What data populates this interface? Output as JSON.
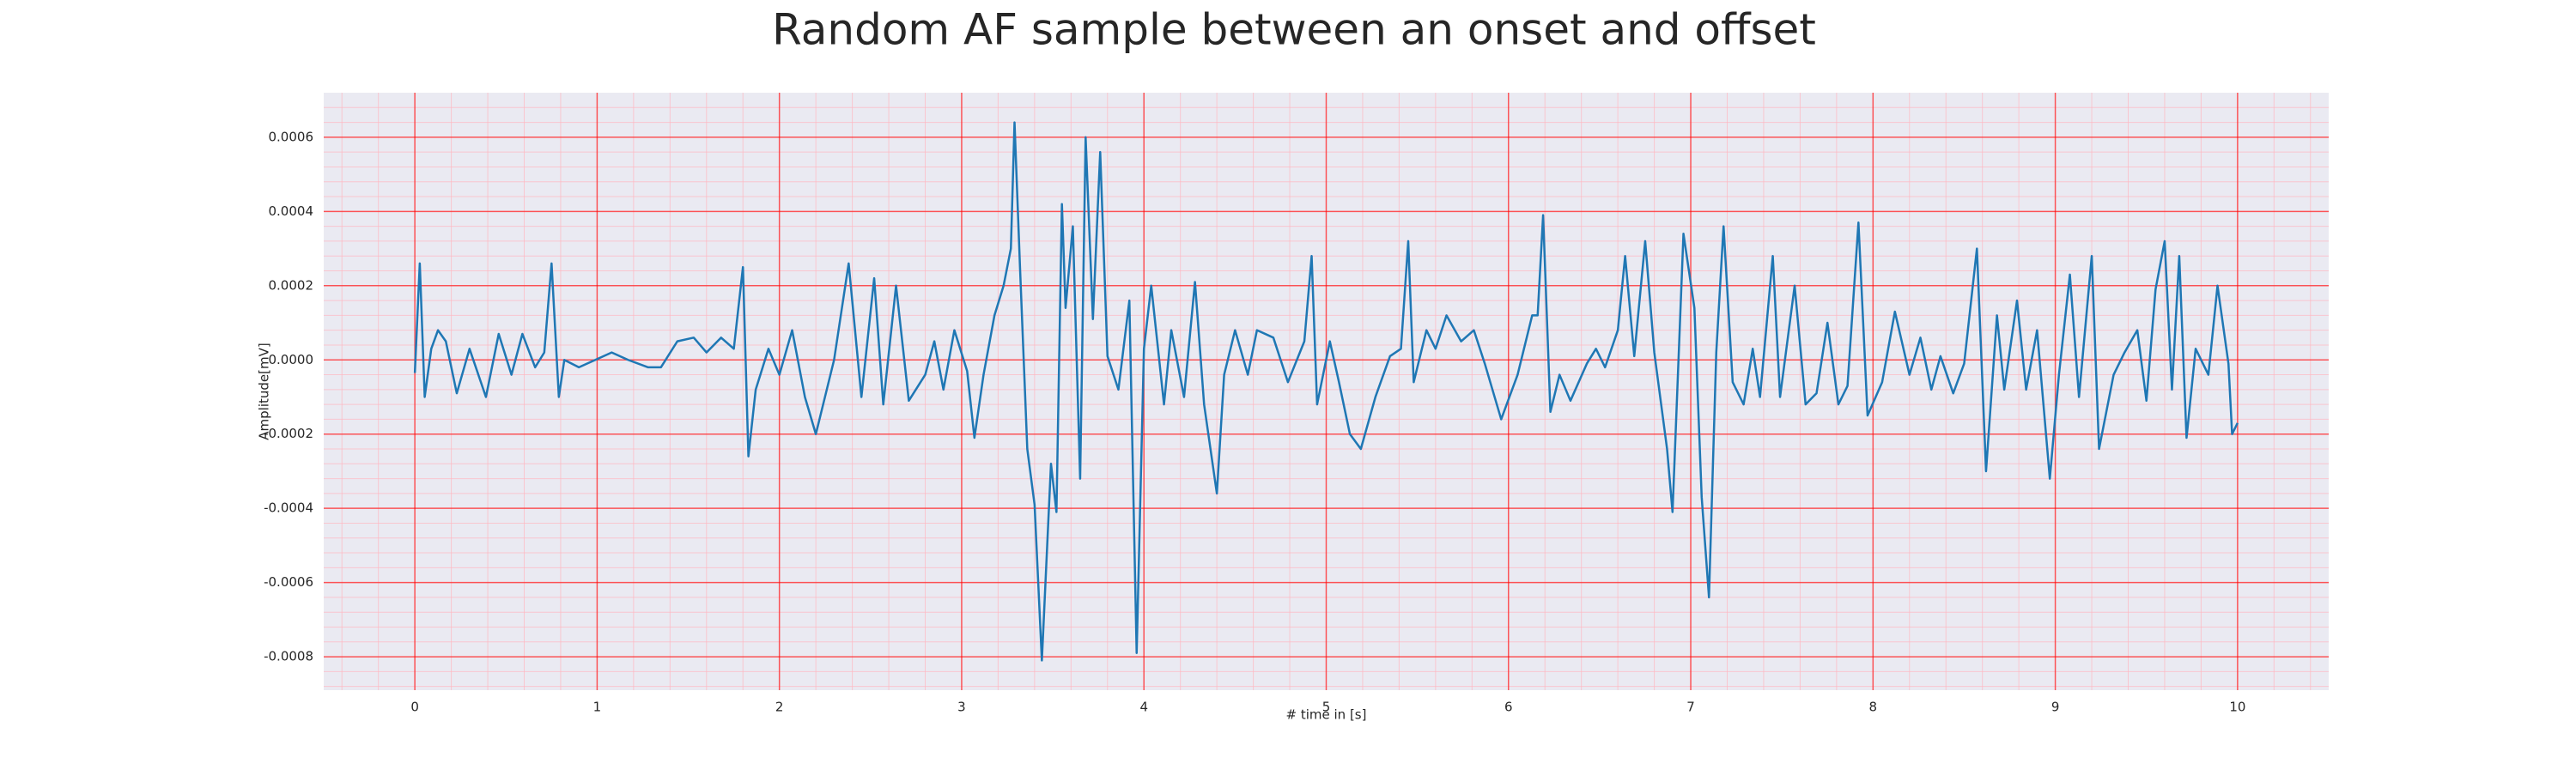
{
  "chart_data": {
    "type": "line",
    "title": "Random AF sample between an onset and offset",
    "xlabel": "# time in [s]",
    "ylabel": "Amplitude[mV]",
    "color": "#1f77b4",
    "grid": true,
    "minor_grid": true,
    "xlim": [
      -0.5,
      10.5
    ],
    "xticks": [
      0,
      1,
      2,
      3,
      4,
      5,
      6,
      7,
      8,
      9,
      10
    ],
    "ylim": [
      -0.00089,
      0.00072
    ],
    "yticks": [
      {
        "value": -0.0008,
        "label": "-0.0008"
      },
      {
        "value": -0.0006,
        "label": "-0.0006"
      },
      {
        "value": -0.0004,
        "label": "-0.0004"
      },
      {
        "value": -0.0002,
        "label": "-0.0002"
      },
      {
        "value": 0,
        "label": "0.0000"
      },
      {
        "value": 0.0002,
        "label": "0.0002"
      },
      {
        "value": 0.0004,
        "label": "0.0004"
      },
      {
        "value": 0.0006,
        "label": "0.0006"
      }
    ],
    "x": [
      0,
      0.027,
      0.054,
      0.09,
      0.127,
      0.17,
      0.23,
      0.3,
      0.39,
      0.46,
      0.53,
      0.59,
      0.66,
      0.71,
      0.75,
      0.79,
      0.82,
      0.9,
      0.99,
      1.08,
      1.17,
      1.28,
      1.35,
      1.44,
      1.53,
      1.6,
      1.68,
      1.75,
      1.8,
      1.83,
      1.87,
      1.94,
      2.0,
      2.07,
      2.14,
      2.2,
      2.3,
      2.38,
      2.45,
      2.52,
      2.57,
      2.64,
      2.71,
      2.8,
      2.85,
      2.9,
      2.96,
      3.03,
      3.07,
      3.12,
      3.18,
      3.23,
      3.27,
      3.29,
      3.32,
      3.36,
      3.4,
      3.44,
      3.49,
      3.52,
      3.55,
      3.57,
      3.61,
      3.65,
      3.68,
      3.72,
      3.76,
      3.8,
      3.86,
      3.92,
      3.96,
      4.0,
      4.04,
      4.11,
      4.15,
      4.22,
      4.28,
      4.33,
      4.4,
      4.44,
      4.5,
      4.57,
      4.62,
      4.71,
      4.79,
      4.88,
      4.92,
      4.95,
      5.02,
      5.07,
      5.13,
      5.19,
      5.27,
      5.35,
      5.41,
      5.45,
      5.48,
      5.55,
      5.6,
      5.66,
      5.74,
      5.81,
      5.87,
      5.96,
      6.05,
      6.13,
      6.16,
      6.19,
      6.23,
      6.28,
      6.34,
      6.43,
      6.48,
      6.53,
      6.6,
      6.64,
      6.69,
      6.75,
      6.8,
      6.87,
      6.9,
      6.96,
      7.02,
      7.06,
      7.1,
      7.14,
      7.18,
      7.23,
      7.29,
      7.34,
      7.38,
      7.45,
      7.49,
      7.57,
      7.63,
      7.69,
      7.75,
      7.81,
      7.86,
      7.92,
      7.97,
      8.05,
      8.12,
      8.2,
      8.26,
      8.32,
      8.37,
      8.44,
      8.5,
      8.57,
      8.62,
      8.68,
      8.72,
      8.79,
      8.84,
      8.9,
      8.97,
      9.02,
      9.08,
      9.13,
      9.2,
      9.24,
      9.32,
      9.38,
      9.45,
      9.5,
      9.55,
      9.6,
      9.64,
      9.68,
      9.72,
      9.77,
      9.84,
      9.89,
      9.95,
      9.97,
      10.0
    ],
    "values": [
      -3.5e-05,
      0.00026,
      -0.0001,
      3e-05,
      8e-05,
      5e-05,
      -9e-05,
      3e-05,
      -0.0001,
      7e-05,
      -4e-05,
      7e-05,
      -2e-05,
      2e-05,
      0.00026,
      -0.0001,
      0,
      -2e-05,
      0,
      2e-05,
      0,
      -2e-05,
      -2e-05,
      5e-05,
      6e-05,
      2e-05,
      6e-05,
      3e-05,
      0.00025,
      -0.00026,
      -8e-05,
      3e-05,
      -4e-05,
      8e-05,
      -0.0001,
      -0.0002,
      0,
      0.00026,
      -0.0001,
      0.00022,
      -0.00012,
      0.0002,
      -0.00011,
      -4e-05,
      5e-05,
      -8e-05,
      8e-05,
      -3e-05,
      -0.00021,
      -4e-05,
      0.00012,
      0.0002,
      0.0003,
      0.00064,
      0.00025,
      -0.00024,
      -0.00039,
      -0.00081,
      -0.00028,
      -0.00041,
      0.00042,
      0.00014,
      0.00036,
      -0.00032,
      0.0006,
      0.00011,
      0.00056,
      1e-05,
      -8e-05,
      0.00016,
      -0.00079,
      3e-05,
      0.0002,
      -0.00012,
      8e-05,
      -0.0001,
      0.00021,
      -0.00012,
      -0.00036,
      -4e-05,
      8e-05,
      -4e-05,
      8e-05,
      6e-05,
      -6e-05,
      5e-05,
      0.00028,
      -0.00012,
      5e-05,
      -6e-05,
      -0.0002,
      -0.00024,
      -0.0001,
      1e-05,
      3e-05,
      0.00032,
      -6e-05,
      8e-05,
      3e-05,
      0.00012,
      5e-05,
      8e-05,
      -1e-05,
      -0.00016,
      -4e-05,
      0.00012,
      0.00012,
      0.00039,
      -0.00014,
      -4e-05,
      -0.00011,
      -1e-05,
      3e-05,
      -2e-05,
      8e-05,
      0.00028,
      1e-05,
      0.00032,
      2e-05,
      -0.00024,
      -0.00041,
      0.00034,
      0.00014,
      -0.00037,
      -0.00064,
      2e-05,
      0.00036,
      -6e-05,
      -0.00012,
      3e-05,
      -0.0001,
      0.00028,
      -0.0001,
      0.0002,
      -0.00012,
      -9e-05,
      0.0001,
      -0.00012,
      -7e-05,
      0.00037,
      -0.00015,
      -6e-05,
      0.00013,
      -4e-05,
      6e-05,
      -8e-05,
      1e-05,
      -9e-05,
      -1e-05,
      0.0003,
      -0.0003,
      0.00012,
      -8e-05,
      0.00016,
      -8e-05,
      8e-05,
      -0.00032,
      -4e-05,
      0.00023,
      -0.0001,
      0.00028,
      -0.00024,
      -4e-05,
      2e-05,
      8e-05,
      -0.00011,
      0.00019,
      0.00032,
      -8e-05,
      0.00028,
      -0.00021,
      3e-05,
      -4e-05,
      0.0002,
      -1e-05,
      -0.0002,
      -0.00017
    ]
  }
}
